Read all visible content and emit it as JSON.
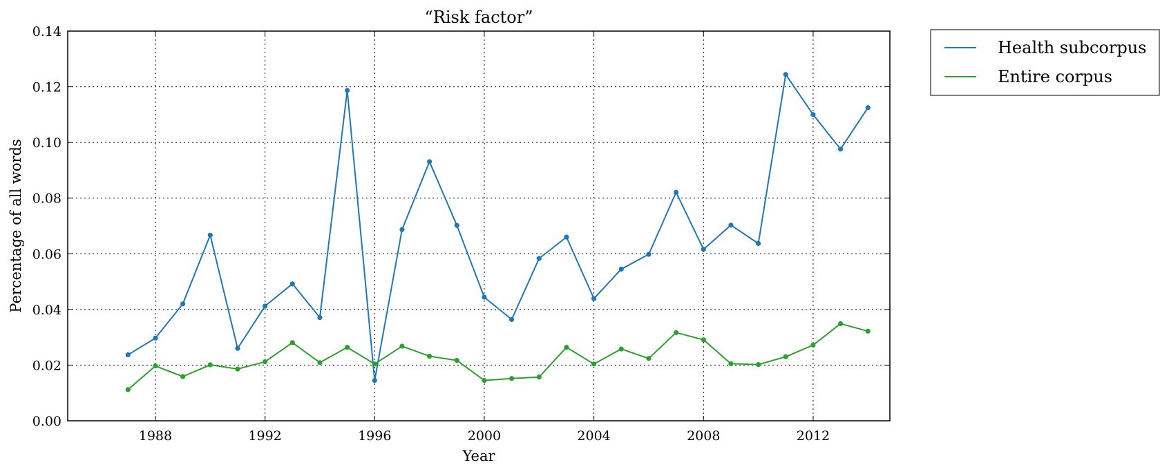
{
  "chart_data": {
    "type": "line",
    "title": "“Risk factor”",
    "xlabel": "Year",
    "ylabel": "Percentage of all words",
    "xlim": [
      1984.8,
      2014.8
    ],
    "ylim": [
      0,
      0.14
    ],
    "xticks": [
      1988,
      1992,
      1996,
      2000,
      2004,
      2008,
      2012
    ],
    "yticks": [
      0.0,
      0.02,
      0.04,
      0.06,
      0.08,
      0.1,
      0.12,
      0.14
    ],
    "ytick_labels": [
      "0.00",
      "0.02",
      "0.04",
      "0.06",
      "0.08",
      "0.10",
      "0.12",
      "0.14"
    ],
    "grid": true,
    "legend_position": "outside-top-right",
    "x": [
      1987,
      1988,
      1989,
      1990,
      1991,
      1992,
      1993,
      1994,
      1995,
      1996,
      1997,
      1998,
      1999,
      2000,
      2001,
      2002,
      2003,
      2004,
      2005,
      2006,
      2007,
      2008,
      2009,
      2010,
      2011,
      2012,
      2013,
      2014
    ],
    "series": [
      {
        "name": "Health subcorpus",
        "color": "#1f77b4",
        "values": [
          0.0237,
          0.0297,
          0.042,
          0.0667,
          0.026,
          0.0412,
          0.0492,
          0.0371,
          0.1187,
          0.0145,
          0.0687,
          0.0931,
          0.0702,
          0.0444,
          0.0364,
          0.0583,
          0.066,
          0.0439,
          0.0545,
          0.0598,
          0.0821,
          0.0616,
          0.0703,
          0.0637,
          0.1244,
          0.11,
          0.0976,
          0.1125
        ]
      },
      {
        "name": "Entire corpus",
        "color": "#2ca02c",
        "values": [
          0.0112,
          0.0197,
          0.0159,
          0.0201,
          0.0186,
          0.0212,
          0.0281,
          0.0209,
          0.0264,
          0.0204,
          0.0268,
          0.0232,
          0.0217,
          0.0145,
          0.0152,
          0.0157,
          0.0264,
          0.0204,
          0.0258,
          0.0224,
          0.0317,
          0.0291,
          0.0205,
          0.0202,
          0.023,
          0.0272,
          0.0349,
          0.0322
        ]
      }
    ]
  }
}
